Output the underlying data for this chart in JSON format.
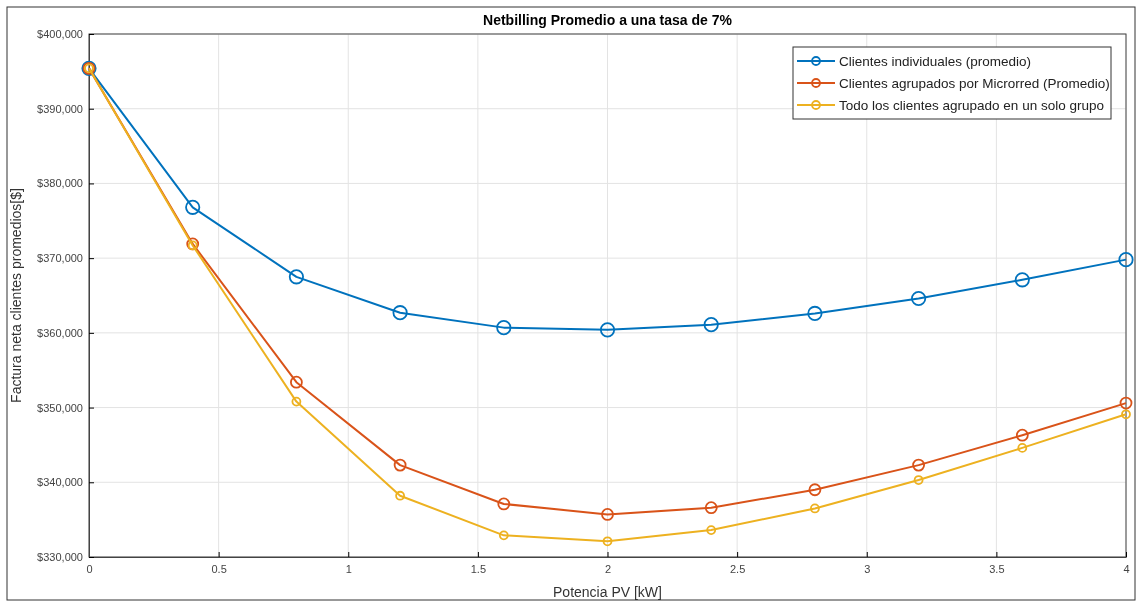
{
  "chart_data": {
    "type": "line",
    "title": "Netbilling Promedio a una tasa de 7%",
    "xlabel": "Potencia PV [kW]",
    "ylabel": "Factura neta clientes promedios[$]",
    "x": [
      0,
      0.4,
      0.8,
      1.2,
      1.6,
      2,
      2.4,
      2.8,
      3.2,
      3.6,
      4
    ],
    "series": [
      {
        "name": "Clientes individuales (promedio)",
        "color": "#0072bd",
        "values": [
          395400,
          376800,
          367500,
          362700,
          360700,
          360400,
          361100,
          362600,
          364600,
          367100,
          369800
        ]
      },
      {
        "name": "Clientes agrupados por Microrred (Promedio)",
        "color": "#d95319",
        "values": [
          395400,
          371900,
          353400,
          342300,
          337100,
          335700,
          336600,
          339000,
          342300,
          346300,
          350600
        ]
      },
      {
        "name": "Todo los clientes agrupado en un solo grupo",
        "color": "#edb120",
        "values": [
          395400,
          371700,
          350800,
          338200,
          332900,
          332100,
          333600,
          336500,
          340300,
          344600,
          349100
        ]
      }
    ],
    "xlim": [
      0,
      4
    ],
    "xticks": [
      0,
      0.5,
      1,
      1.5,
      2,
      2.5,
      3,
      3.5,
      4
    ],
    "ylim": [
      330000,
      400000
    ],
    "yticks": [
      {
        "value": 330000,
        "label": "$330,000"
      },
      {
        "value": 340000,
        "label": "$340,000"
      },
      {
        "value": 350000,
        "label": "$350,000"
      },
      {
        "value": 360000,
        "label": "$360,000"
      },
      {
        "value": 370000,
        "label": "$370,000"
      },
      {
        "value": 380000,
        "label": "$380,000"
      },
      {
        "value": 390000,
        "label": "$390,000"
      },
      {
        "value": 400000,
        "label": "$400,000"
      }
    ],
    "grid": true,
    "legend": "top right",
    "marker": "circle",
    "line_style": "solid"
  }
}
